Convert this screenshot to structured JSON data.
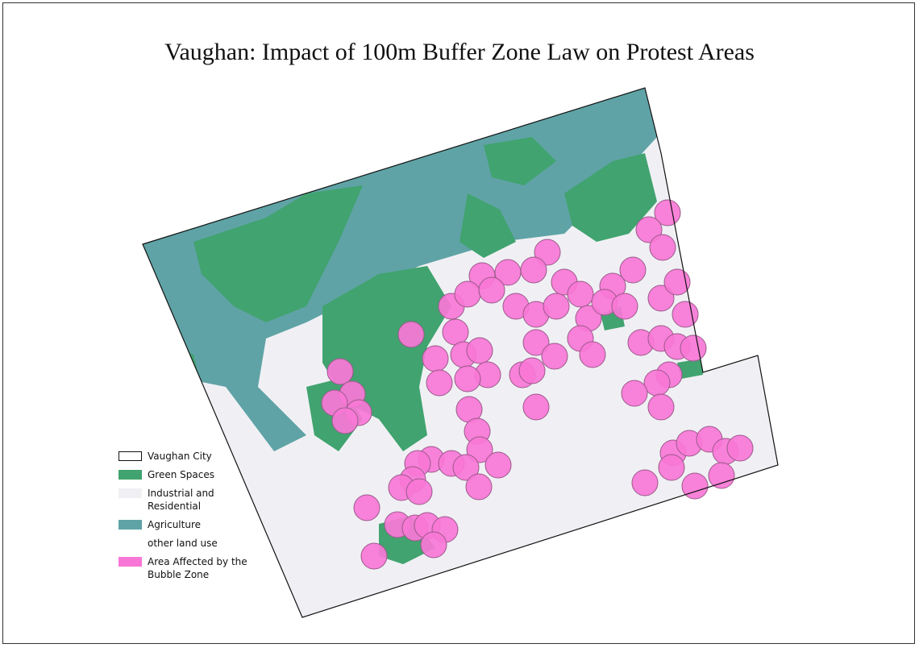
{
  "title": "Vaughan: Impact of 100m Buffer Zone Law on Protest Areas",
  "legend": {
    "items": [
      {
        "label": "Vaughan City",
        "color": "#ffffff"
      },
      {
        "label": "Green Spaces",
        "color": "#41a36f"
      },
      {
        "label": "Industrial and Residential",
        "color": "#f0f0f4"
      },
      {
        "label": "Agriculture",
        "color": "#5fa3a6"
      },
      {
        "label": "other land use",
        "color": "#ffffff"
      },
      {
        "label": "Area Affected by the Bubble Zone",
        "color": "#f877d6"
      }
    ]
  }
}
